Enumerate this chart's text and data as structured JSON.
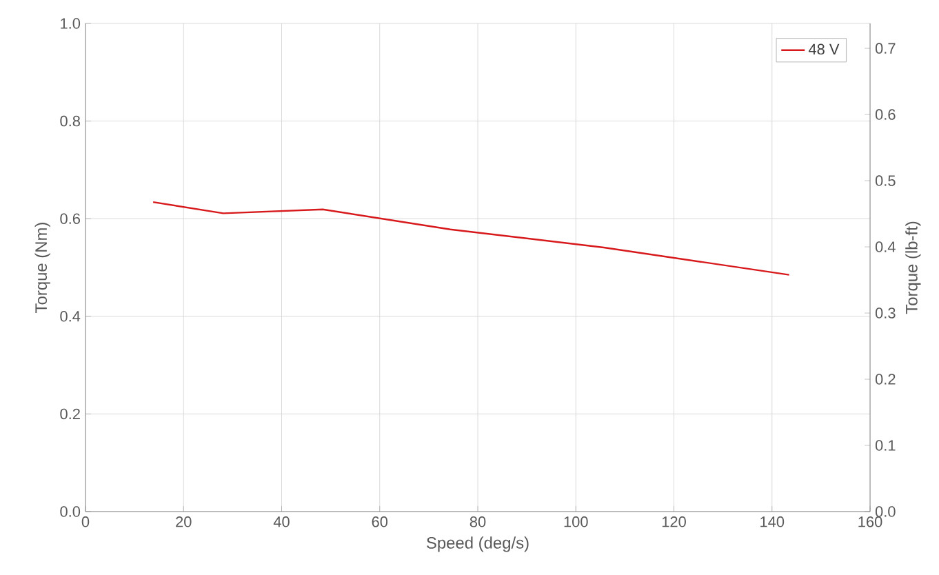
{
  "chart_data": {
    "type": "line",
    "xlabel": "Speed (deg/s)",
    "ylabel": "Torque (Nm)",
    "y2label": "Torque (lb-ft)",
    "xlim": [
      0,
      160
    ],
    "xticks": [
      0,
      20,
      40,
      60,
      80,
      100,
      120,
      140,
      160
    ],
    "ylim": [
      0,
      1.0
    ],
    "yticks": [
      {
        "value": 0,
        "label": "0.0"
      },
      0.2,
      0.4,
      0.6,
      0.8,
      {
        "value": 1,
        "label": "1.0"
      }
    ],
    "y2lim": [
      0,
      0.7376
    ],
    "y2ticks": [
      {
        "value": 0,
        "label": "0.0"
      },
      0.1,
      0.2,
      0.3,
      0.4,
      0.5,
      0.6,
      0.7
    ],
    "grid": true,
    "legend": "top right",
    "series": [
      {
        "name": "48 V",
        "color": "#d7191c",
        "x": [
          13.8,
          28.1,
          48.4,
          74.4,
          105.7,
          143.5
        ],
        "values": [
          0.634,
          0.611,
          0.619,
          0.578,
          0.541,
          0.485
        ]
      }
    ]
  }
}
